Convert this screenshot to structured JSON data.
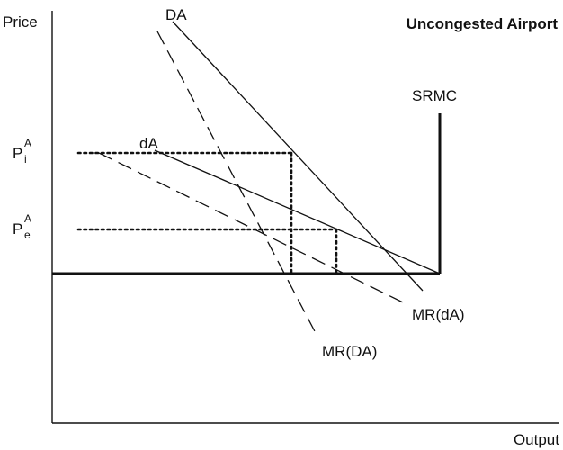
{
  "title": "Uncongested Airport",
  "axes": {
    "y_label": "Price",
    "x_label": "Output"
  },
  "curves": {
    "DA": "DA",
    "dA": "dA",
    "SRMC": "SRMC",
    "MR_dA": "MR(dA)",
    "MR_DA": "MR(DA)"
  },
  "prices": {
    "Pi": {
      "base": "P",
      "sup": "A",
      "sub": "i"
    },
    "Pe": {
      "base": "P",
      "sup": "A",
      "sub": "e"
    }
  }
}
